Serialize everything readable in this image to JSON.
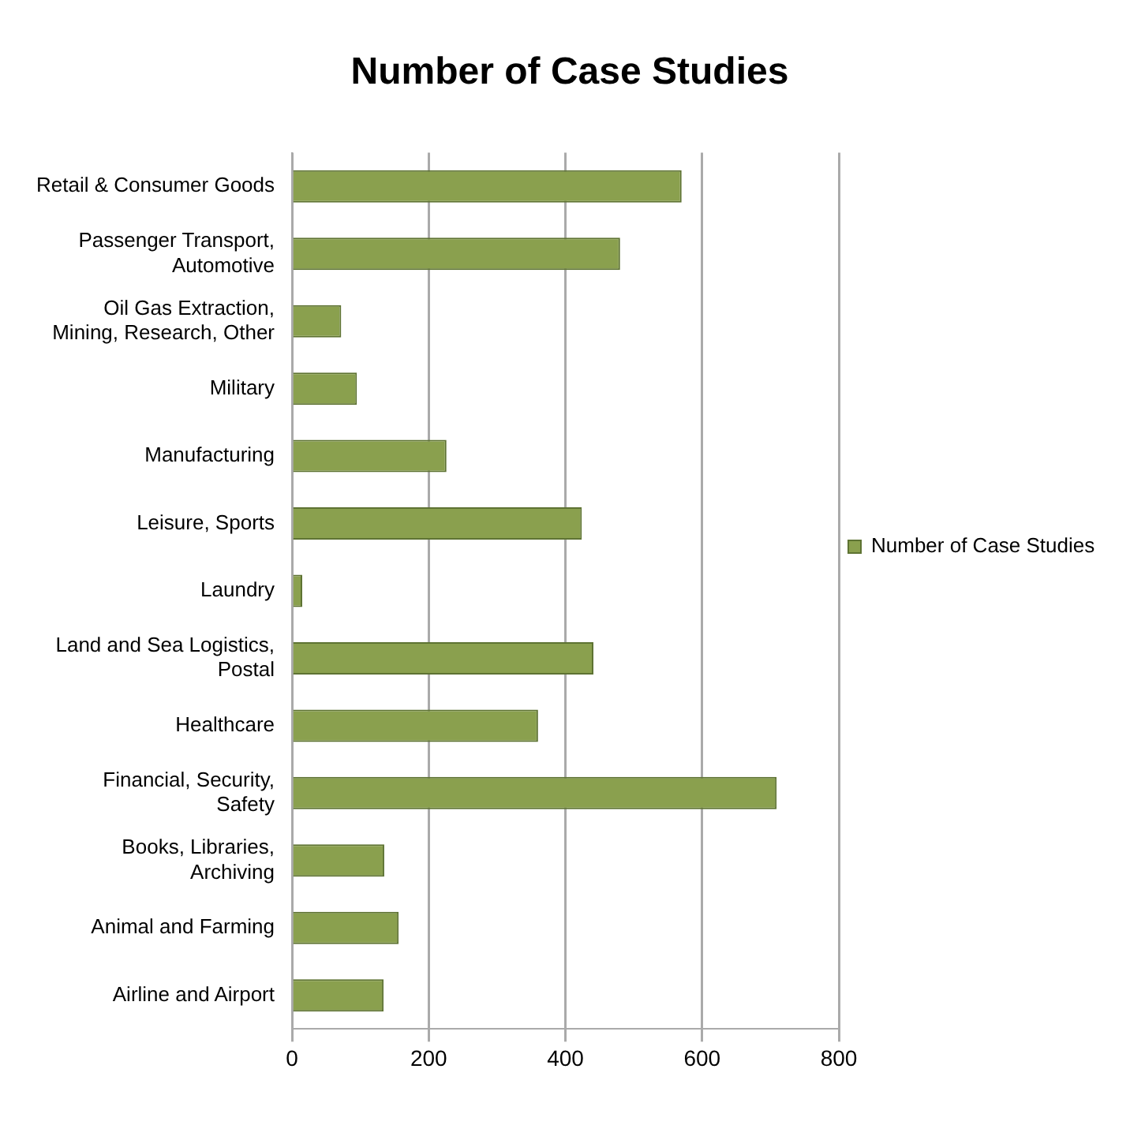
{
  "chart_data": {
    "type": "bar",
    "orientation": "horizontal",
    "title": "Number of Case Studies",
    "categories": [
      "Retail & Consumer Goods",
      "Passenger Transport, Automotive",
      "Oil Gas Extraction, Mining, Research, Other",
      "Military",
      "Manufacturing",
      "Leisure, Sports",
      "Laundry",
      "Land and Sea Logistics, Postal",
      "Healthcare",
      "Financial, Security, Safety",
      "Books, Libraries, Archiving",
      "Animal and Farming",
      "Airline and Airport"
    ],
    "series": [
      {
        "name": "Number of Case Studies",
        "color": "#8aa04e",
        "values": [
          570,
          480,
          72,
          95,
          226,
          424,
          15,
          441,
          360,
          709,
          135,
          156,
          134
        ]
      }
    ],
    "xlim": [
      0,
      800
    ],
    "xticks": [
      0,
      200,
      400,
      600,
      800
    ],
    "grid": "x",
    "legend": "right"
  }
}
